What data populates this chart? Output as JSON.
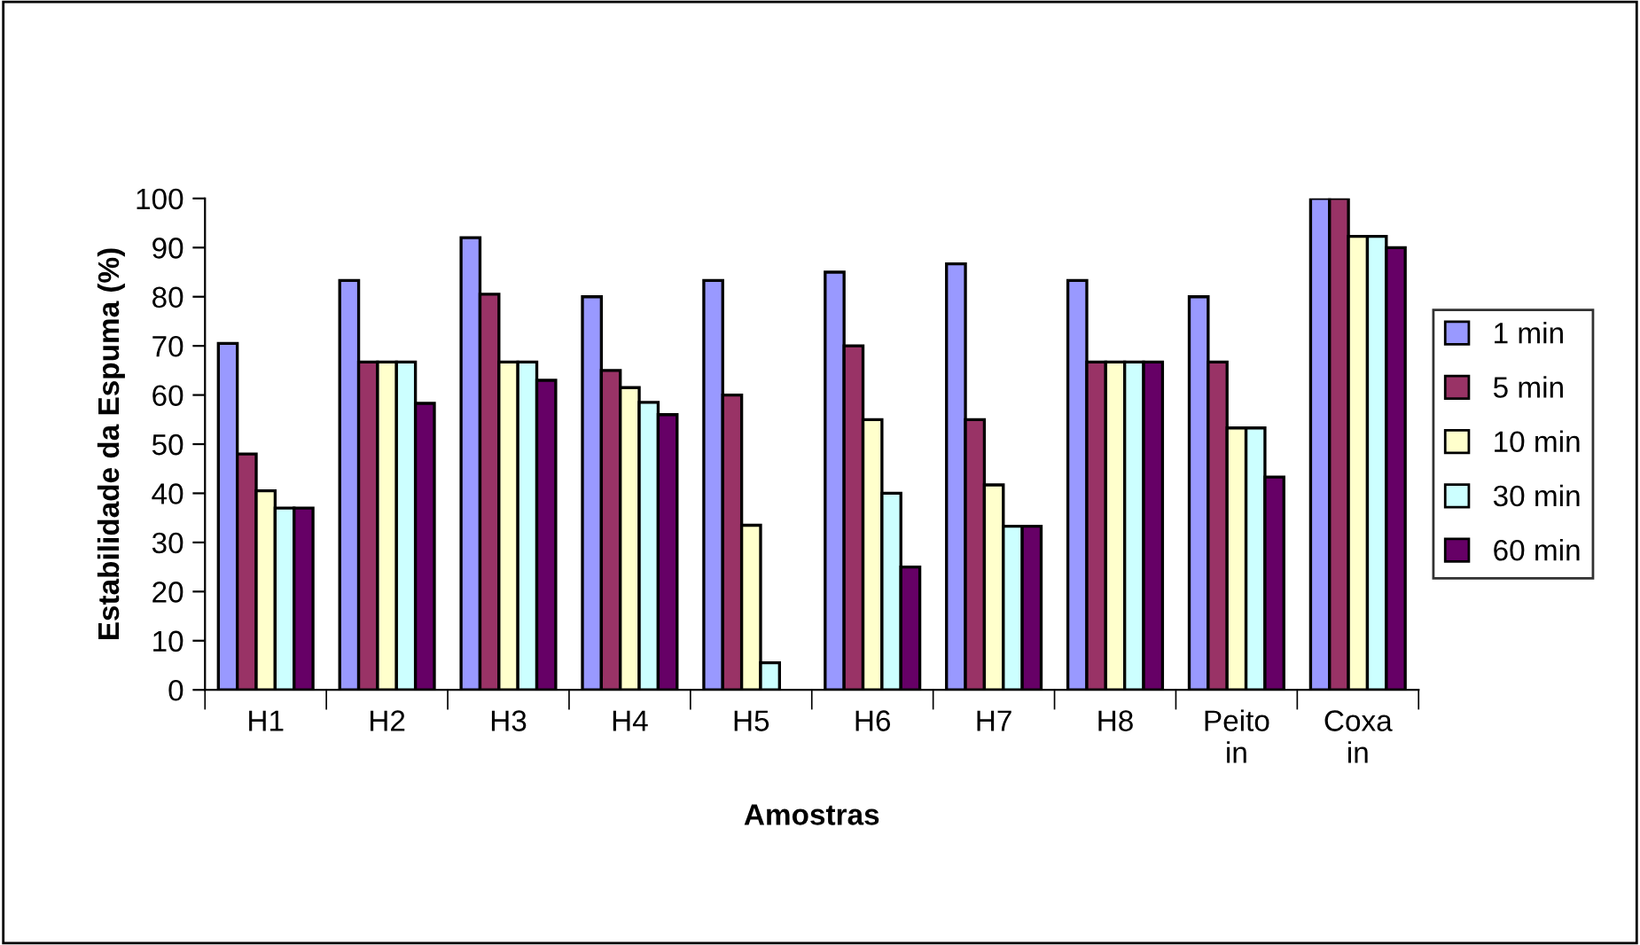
{
  "chart_data": {
    "type": "bar",
    "xlabel": "Amostras",
    "ylabel": "Estabilidade da Espuma (%)",
    "categories": [
      "H1",
      "H2",
      "H3",
      "H4",
      "H5",
      "H6",
      "H7",
      "H8",
      "Peito\nin",
      "Coxa\nin"
    ],
    "series": [
      {
        "name": "1 min",
        "color": "#9999ff",
        "values": [
          70.5,
          83.3,
          92,
          80,
          83.3,
          85,
          86.7,
          83.3,
          80,
          100
        ]
      },
      {
        "name": "5 min",
        "color": "#993366",
        "values": [
          48,
          66.7,
          80.5,
          65,
          60,
          70,
          55,
          66.7,
          66.7,
          100
        ]
      },
      {
        "name": "10 min",
        "color": "#ffffcc",
        "values": [
          40.5,
          66.7,
          66.7,
          61.5,
          33.5,
          55,
          41.7,
          66.7,
          53.3,
          92.3
        ]
      },
      {
        "name": "30 min",
        "color": "#ccffff",
        "values": [
          37,
          66.7,
          66.7,
          58.5,
          5.5,
          40,
          33.3,
          66.7,
          53.3,
          92.3
        ]
      },
      {
        "name": "60 min",
        "color": "#660066",
        "values": [
          37,
          58.3,
          63,
          56,
          null,
          25,
          33.3,
          66.7,
          43.3,
          90
        ]
      }
    ],
    "ylim": [
      0,
      100
    ],
    "yticks": [
      0,
      10,
      20,
      30,
      40,
      50,
      60,
      70,
      80,
      90,
      100
    ],
    "grid": false,
    "legend": "right"
  }
}
